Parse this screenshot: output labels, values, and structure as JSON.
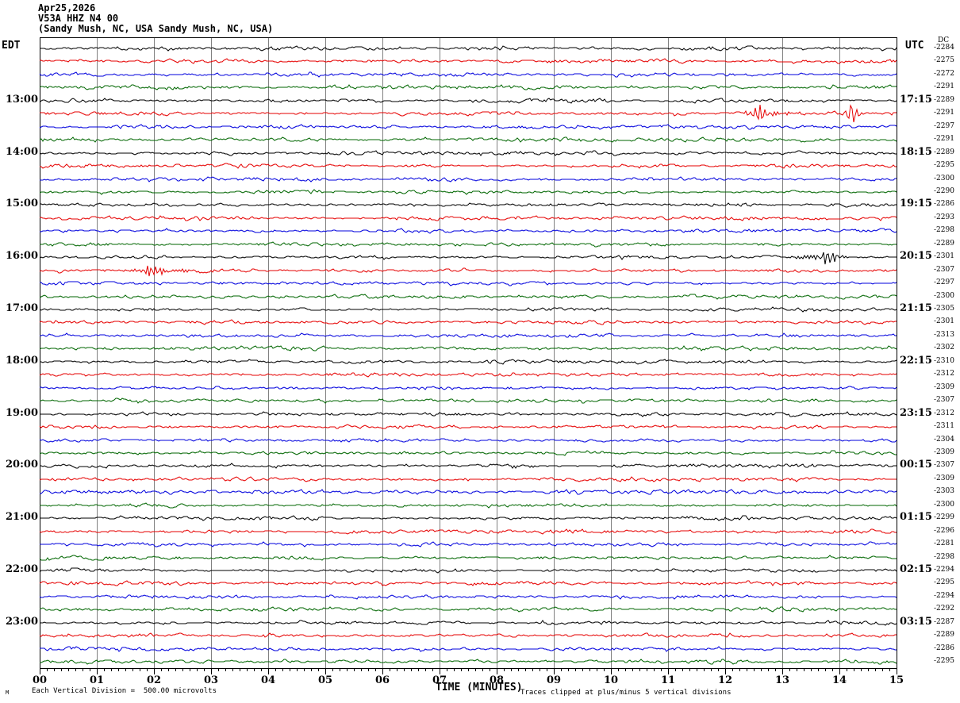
{
  "colors": {
    "trace_black": "#000000",
    "trace_red": "#e60000",
    "trace_blue": "#0000dd",
    "trace_green": "#006600",
    "grid": "#808080",
    "border": "#000000"
  },
  "chart_data": {
    "type": "line",
    "subtype": "helicorder-seismogram",
    "title_lines": [
      "Apr25,2026",
      "V53A HHZ N4 00",
      "(Sandy Mush, NC, USA Sandy Mush, NC, USA)"
    ],
    "left_axis_label": "EDT",
    "right_axis_label": "UTC",
    "dc_header": "DC",
    "xlabel": "TIME (MINUTES)",
    "x_ticks": [
      "00",
      "01",
      "02",
      "03",
      "04",
      "05",
      "06",
      "07",
      "08",
      "09",
      "10",
      "11",
      "12",
      "13",
      "14",
      "15"
    ],
    "x_range_minutes": [
      0,
      15
    ],
    "minor_divisions_per_minute": 8,
    "minutes_per_row": 15,
    "scale_note": "Each Vertical Division =  500.00 microvolts",
    "clip_note": "Traces clipped at plus/minus 5 vertical divisions",
    "corner_mark": "M",
    "rows": [
      {
        "color": "black",
        "dc": -2284,
        "left": "",
        "right": ""
      },
      {
        "color": "red",
        "dc": -2275,
        "left": "",
        "right": ""
      },
      {
        "color": "blue",
        "dc": -2272,
        "left": "",
        "right": ""
      },
      {
        "color": "green",
        "dc": -2291,
        "left": "",
        "right": ""
      },
      {
        "color": "black",
        "dc": -2289,
        "left": "13:00",
        "right": "17:15"
      },
      {
        "color": "red",
        "dc": -2291,
        "left": "",
        "right": ""
      },
      {
        "color": "blue",
        "dc": -2297,
        "left": "",
        "right": ""
      },
      {
        "color": "green",
        "dc": -2291,
        "left": "",
        "right": ""
      },
      {
        "color": "black",
        "dc": -2289,
        "left": "14:00",
        "right": "18:15"
      },
      {
        "color": "red",
        "dc": -2295,
        "left": "",
        "right": ""
      },
      {
        "color": "blue",
        "dc": -2300,
        "left": "",
        "right": ""
      },
      {
        "color": "green",
        "dc": -2290,
        "left": "",
        "right": ""
      },
      {
        "color": "black",
        "dc": -2286,
        "left": "15:00",
        "right": "19:15"
      },
      {
        "color": "red",
        "dc": -2293,
        "left": "",
        "right": ""
      },
      {
        "color": "blue",
        "dc": -2298,
        "left": "",
        "right": ""
      },
      {
        "color": "green",
        "dc": -2289,
        "left": "",
        "right": ""
      },
      {
        "color": "black",
        "dc": -2301,
        "left": "16:00",
        "right": "20:15"
      },
      {
        "color": "red",
        "dc": -2307,
        "left": "",
        "right": ""
      },
      {
        "color": "blue",
        "dc": -2297,
        "left": "",
        "right": ""
      },
      {
        "color": "green",
        "dc": -2300,
        "left": "",
        "right": ""
      },
      {
        "color": "black",
        "dc": -2305,
        "left": "17:00",
        "right": "21:15"
      },
      {
        "color": "red",
        "dc": -2301,
        "left": "",
        "right": ""
      },
      {
        "color": "blue",
        "dc": -2313,
        "left": "",
        "right": ""
      },
      {
        "color": "green",
        "dc": -2302,
        "left": "",
        "right": ""
      },
      {
        "color": "black",
        "dc": -2310,
        "left": "18:00",
        "right": "22:15"
      },
      {
        "color": "red",
        "dc": -2312,
        "left": "",
        "right": ""
      },
      {
        "color": "blue",
        "dc": -2309,
        "left": "",
        "right": ""
      },
      {
        "color": "green",
        "dc": -2307,
        "left": "",
        "right": ""
      },
      {
        "color": "black",
        "dc": -2312,
        "left": "19:00",
        "right": "23:15"
      },
      {
        "color": "red",
        "dc": -2311,
        "left": "",
        "right": ""
      },
      {
        "color": "blue",
        "dc": -2304,
        "left": "",
        "right": ""
      },
      {
        "color": "green",
        "dc": -2309,
        "left": "",
        "right": ""
      },
      {
        "color": "black",
        "dc": -2307,
        "left": "20:00",
        "right": "00:15"
      },
      {
        "color": "red",
        "dc": -2309,
        "left": "",
        "right": ""
      },
      {
        "color": "blue",
        "dc": -2303,
        "left": "",
        "right": ""
      },
      {
        "color": "green",
        "dc": -2300,
        "left": "",
        "right": ""
      },
      {
        "color": "black",
        "dc": -2299,
        "left": "21:00",
        "right": "01:15"
      },
      {
        "color": "red",
        "dc": -2296,
        "left": "",
        "right": ""
      },
      {
        "color": "blue",
        "dc": -2281,
        "left": "",
        "right": ""
      },
      {
        "color": "green",
        "dc": -2298,
        "left": "",
        "right": ""
      },
      {
        "color": "black",
        "dc": -2294,
        "left": "22:00",
        "right": "02:15"
      },
      {
        "color": "red",
        "dc": -2295,
        "left": "",
        "right": ""
      },
      {
        "color": "blue",
        "dc": -2294,
        "left": "",
        "right": ""
      },
      {
        "color": "green",
        "dc": -2292,
        "left": "",
        "right": ""
      },
      {
        "color": "black",
        "dc": -2287,
        "left": "23:00",
        "right": "03:15"
      },
      {
        "color": "red",
        "dc": -2289,
        "left": "",
        "right": ""
      },
      {
        "color": "blue",
        "dc": -2286,
        "left": "",
        "right": ""
      },
      {
        "color": "green",
        "dc": -2295,
        "left": "",
        "right": ""
      }
    ],
    "events": [
      {
        "row": 6,
        "t": 12.6,
        "amp": 9,
        "sigma": 0.12,
        "freq": 24
      },
      {
        "row": 6,
        "t": 12.75,
        "amp": 2,
        "sigma": 0.35,
        "freq": 20
      },
      {
        "row": 6,
        "t": 14.22,
        "amp": 12,
        "sigma": 0.09,
        "freq": 26
      },
      {
        "row": 17,
        "t": 13.8,
        "amp": 8,
        "sigma": 0.12,
        "freq": 24
      },
      {
        "row": 17,
        "t": 13.6,
        "amp": 2,
        "sigma": 0.3,
        "freq": 18
      },
      {
        "row": 18,
        "t": 1.97,
        "amp": 7,
        "sigma": 0.14,
        "freq": 22
      },
      {
        "row": 18,
        "t": 2.2,
        "amp": 1.8,
        "sigma": 0.55,
        "freq": 18
      }
    ]
  }
}
